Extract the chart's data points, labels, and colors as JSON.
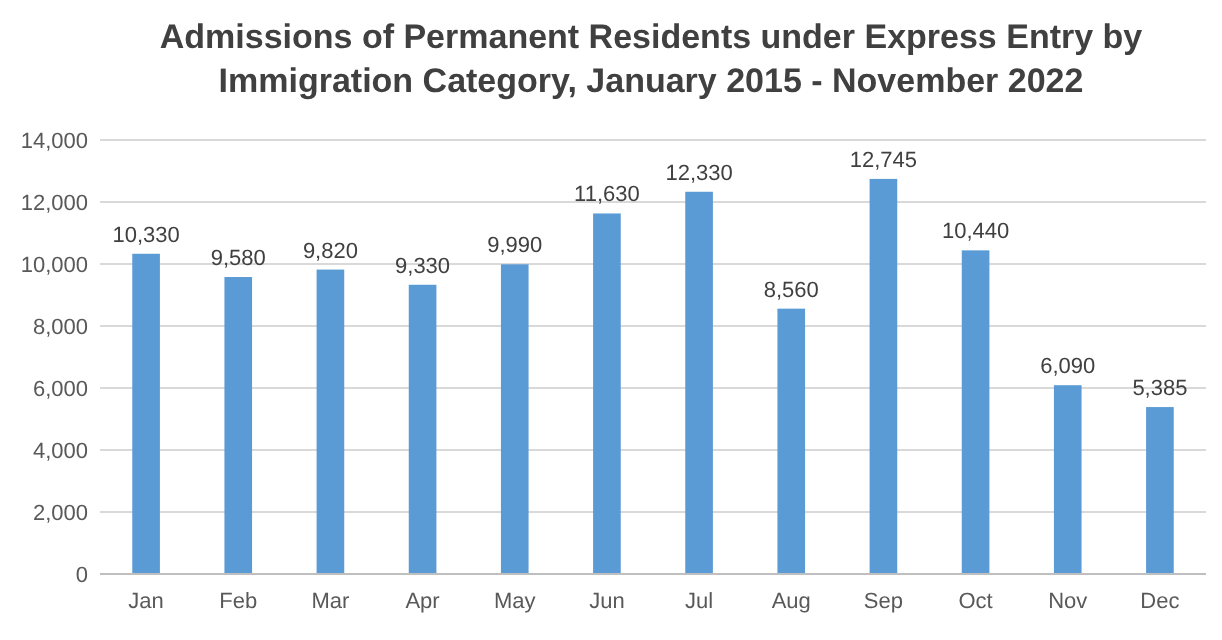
{
  "chart_data": {
    "type": "bar",
    "title": "Admissions of Permanent Residents under Express Entry by Immigration Category, January 2015 - November 2022",
    "categories": [
      "Jan",
      "Feb",
      "Mar",
      "Apr",
      "May",
      "Jun",
      "Jul",
      "Aug",
      "Sep",
      "Oct",
      "Nov",
      "Dec"
    ],
    "values": [
      10330,
      9580,
      9820,
      9330,
      9990,
      11630,
      12330,
      8560,
      12745,
      10440,
      6090,
      5385
    ],
    "value_labels": [
      "10,330",
      "9,580",
      "9,820",
      "9,330",
      "9,990",
      "11,630",
      "12,330",
      "8,560",
      "12,745",
      "10,440",
      "6,090",
      "5,385"
    ],
    "color": "#5b9bd5",
    "ylim": [
      0,
      14000
    ],
    "yticks": [
      {
        "value": 0,
        "label": "0"
      },
      {
        "value": 2000,
        "label": "2,000"
      },
      {
        "value": 4000,
        "label": "4,000"
      },
      {
        "value": 6000,
        "label": "6,000"
      },
      {
        "value": 8000,
        "label": "8,000"
      },
      {
        "value": 10000,
        "label": "10,000"
      },
      {
        "value": 12000,
        "label": "12,000"
      },
      {
        "value": 14000,
        "label": "14,000"
      }
    ],
    "grid": "y"
  }
}
